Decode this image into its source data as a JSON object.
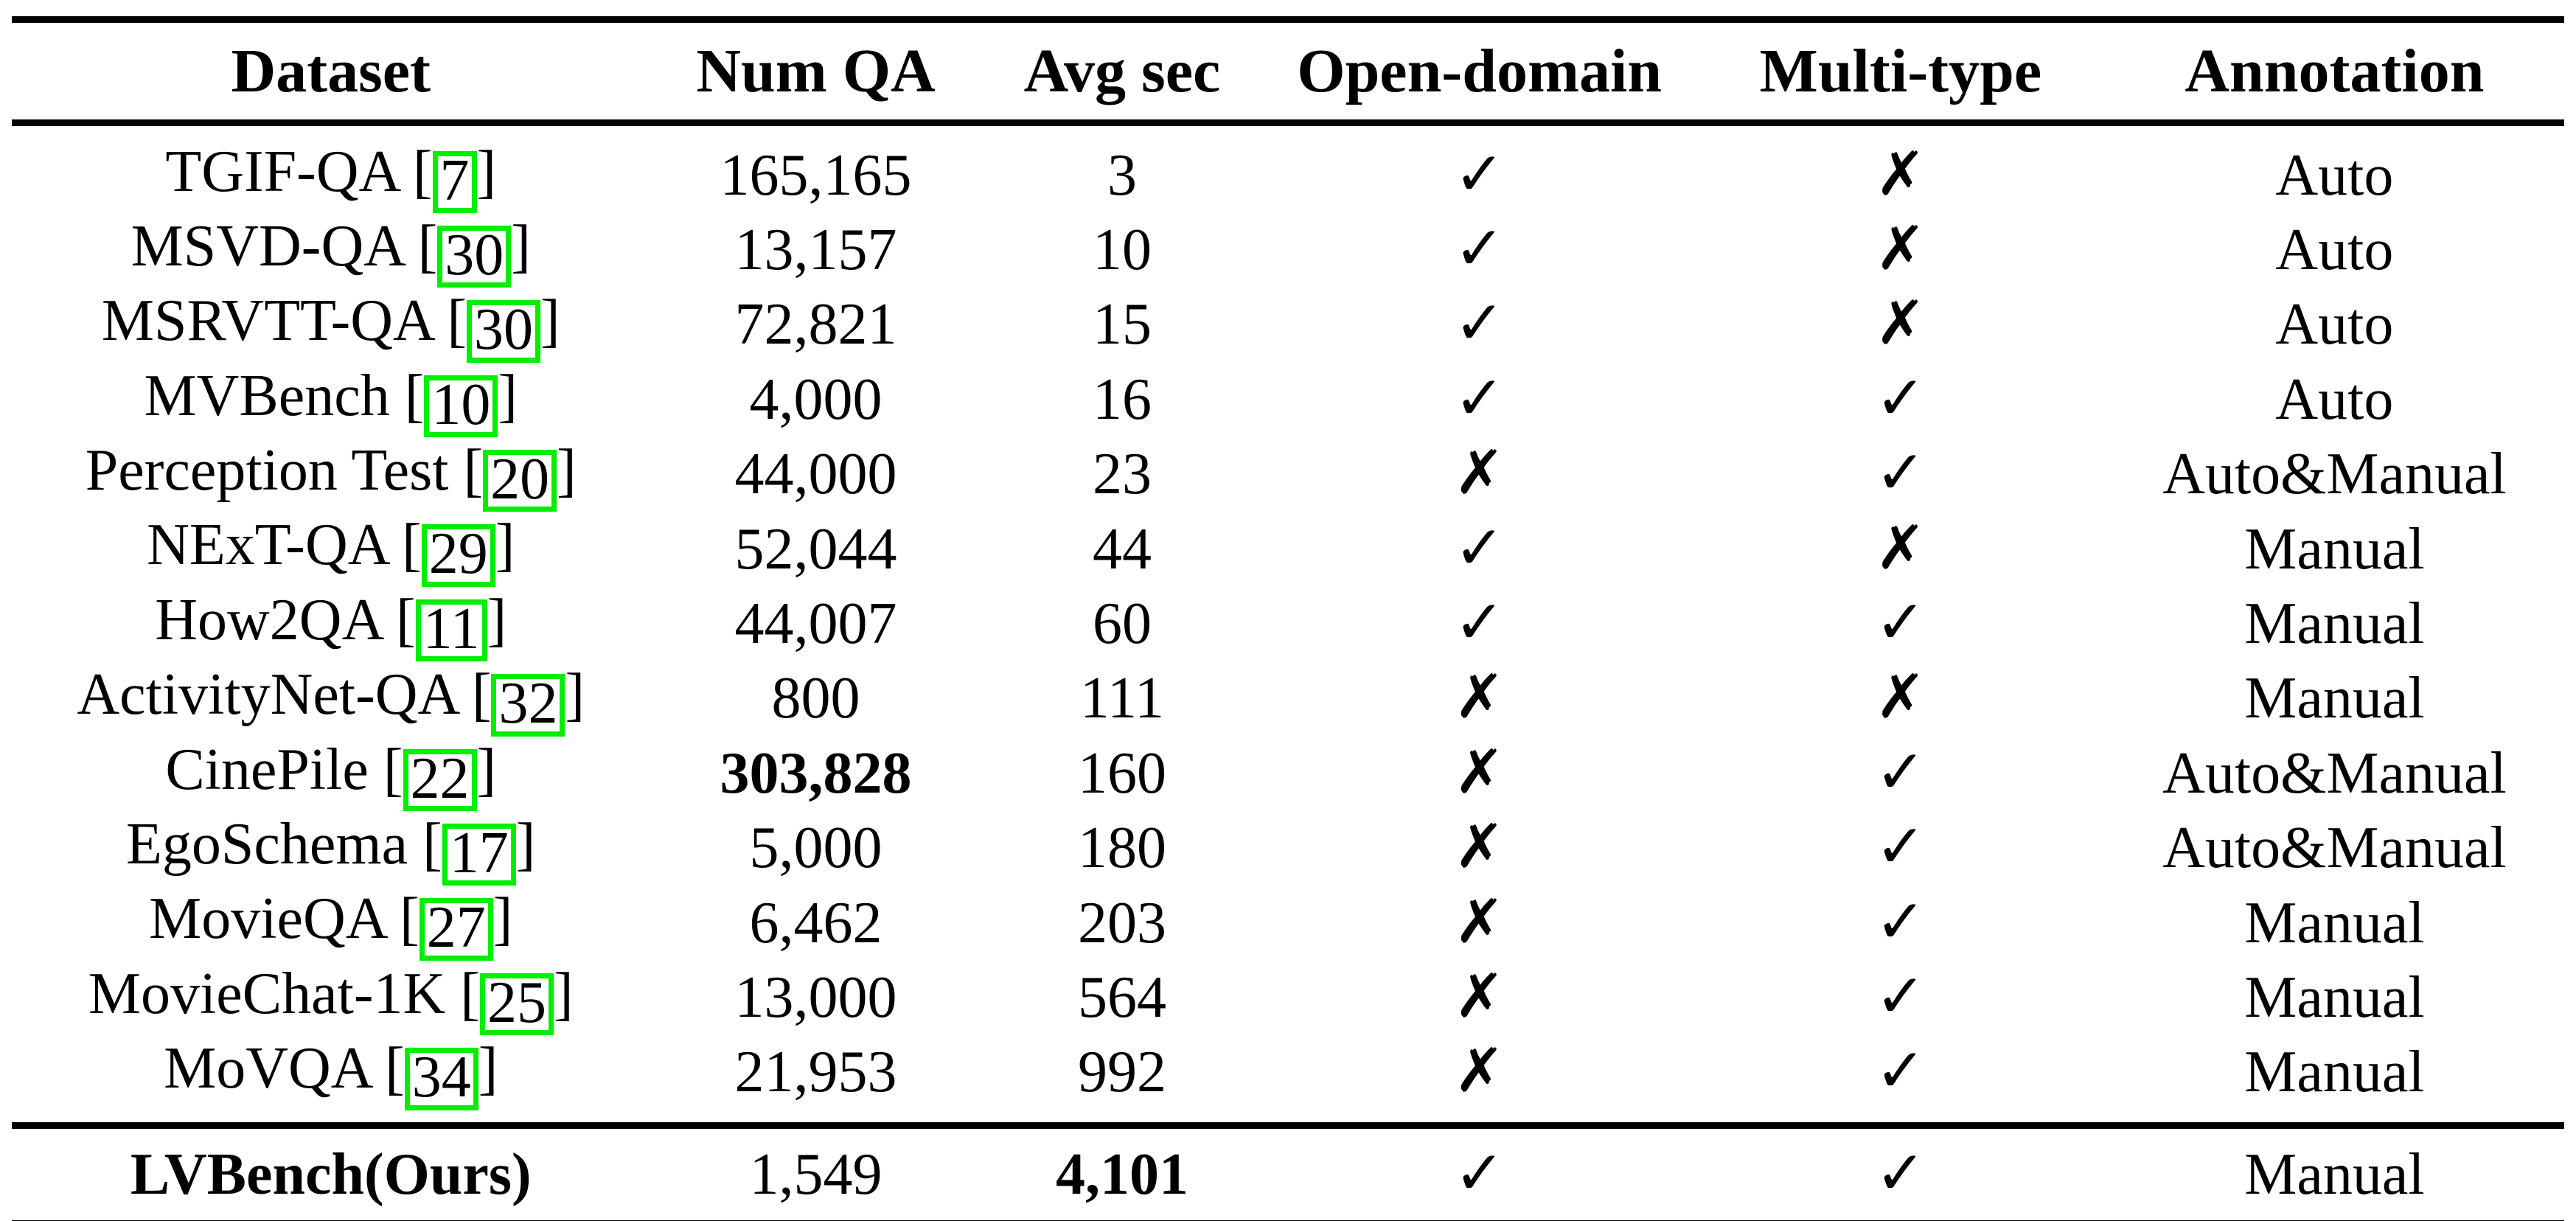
{
  "table": {
    "columns": [
      {
        "key": "dataset",
        "label": "Dataset"
      },
      {
        "key": "num_qa",
        "label": "Num QA"
      },
      {
        "key": "avg_sec",
        "label": "Avg sec"
      },
      {
        "key": "open_domain",
        "label": "Open-domain"
      },
      {
        "key": "multi_type",
        "label": "Multi-type"
      },
      {
        "key": "annotation",
        "label": "Annotation"
      }
    ],
    "glyphs": {
      "check": "✓",
      "cross": "✗",
      "bracket_open": "[",
      "bracket_close": "]"
    },
    "colors": {
      "citation_box": "#00ee00",
      "text": "#000000",
      "background": "#ffffff"
    },
    "rows": [
      {
        "dataset": "TGIF-QA",
        "citation": "7",
        "num_qa": "165,165",
        "avg_sec": "3",
        "open_domain": true,
        "multi_type": false,
        "annotation": "Auto"
      },
      {
        "dataset": "MSVD-QA",
        "citation": "30",
        "num_qa": "13,157",
        "avg_sec": "10",
        "open_domain": true,
        "multi_type": false,
        "annotation": "Auto"
      },
      {
        "dataset": "MSRVTT-QA",
        "citation": "30",
        "num_qa": "72,821",
        "avg_sec": "15",
        "open_domain": true,
        "multi_type": false,
        "annotation": "Auto"
      },
      {
        "dataset": "MVBench",
        "citation": "10",
        "num_qa": "4,000",
        "avg_sec": "16",
        "open_domain": true,
        "multi_type": true,
        "annotation": "Auto"
      },
      {
        "dataset": "Perception Test",
        "citation": "20",
        "num_qa": "44,000",
        "avg_sec": "23",
        "open_domain": false,
        "multi_type": true,
        "annotation": "Auto&Manual"
      },
      {
        "dataset": "NExT-QA",
        "citation": "29",
        "num_qa": "52,044",
        "avg_sec": "44",
        "open_domain": true,
        "multi_type": false,
        "annotation": "Manual"
      },
      {
        "dataset": "How2QA",
        "citation": "11",
        "num_qa": "44,007",
        "avg_sec": "60",
        "open_domain": true,
        "multi_type": true,
        "annotation": "Manual"
      },
      {
        "dataset": "ActivityNet-QA",
        "citation": "32",
        "num_qa": "800",
        "avg_sec": "111",
        "open_domain": false,
        "multi_type": false,
        "annotation": "Manual"
      },
      {
        "dataset": "CinePile",
        "citation": "22",
        "num_qa": "303,828",
        "avg_sec": "160",
        "open_domain": false,
        "multi_type": true,
        "annotation": "Auto&Manual",
        "bold_num_qa": true
      },
      {
        "dataset": "EgoSchema",
        "citation": "17",
        "num_qa": "5,000",
        "avg_sec": "180",
        "open_domain": false,
        "multi_type": true,
        "annotation": "Auto&Manual"
      },
      {
        "dataset": "MovieQA",
        "citation": "27",
        "num_qa": "6,462",
        "avg_sec": "203",
        "open_domain": false,
        "multi_type": true,
        "annotation": "Manual"
      },
      {
        "dataset": "MovieChat-1K",
        "citation": "25",
        "num_qa": "13,000",
        "avg_sec": "564",
        "open_domain": false,
        "multi_type": true,
        "annotation": "Manual"
      },
      {
        "dataset": "MoVQA",
        "citation": "34",
        "num_qa": "21,953",
        "avg_sec": "992",
        "open_domain": false,
        "multi_type": true,
        "annotation": "Manual"
      }
    ],
    "ours_rows": [
      {
        "dataset": "LVBench(Ours)",
        "citation": null,
        "num_qa": "1,549",
        "avg_sec": "4,101",
        "open_domain": true,
        "multi_type": true,
        "annotation": "Manual",
        "bold_dataset": true,
        "bold_avg_sec": true
      }
    ]
  }
}
